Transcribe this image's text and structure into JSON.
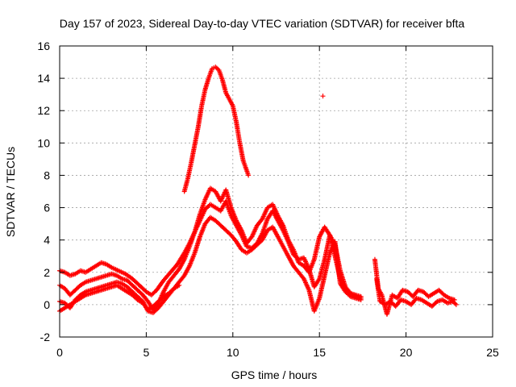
{
  "chart_data": {
    "type": "scatter",
    "title": "Day 157 of 2023, Sidereal Day-to-day VTEC variation (SDTVAR) for receiver bfta",
    "xlabel": "GPS time / hours",
    "ylabel": "SDTVAR / TECUs",
    "xlim": [
      0,
      25
    ],
    "ylim": [
      -2,
      16
    ],
    "xticks": [
      0,
      5,
      10,
      15,
      20,
      25
    ],
    "yticks": [
      -2,
      0,
      2,
      4,
      6,
      8,
      10,
      12,
      14,
      16
    ],
    "grid": true,
    "marker": "+",
    "color": "#ff0000",
    "series": [
      {
        "name": "track-a",
        "x": [
          0,
          0.3,
          0.6,
          0.9,
          1.2,
          1.5,
          1.8,
          2.1,
          2.4,
          2.7,
          3.0,
          3.4,
          3.8,
          4.2,
          4.6,
          5.0,
          5.3,
          5.6,
          6.0,
          6.4,
          6.8,
          7.2,
          7.5,
          7.8,
          8.1,
          8.4,
          8.7,
          9.0,
          9.3,
          9.6,
          9.9,
          10.2,
          10.5,
          10.8,
          11.1,
          11.4,
          11.7,
          12.0,
          12.3,
          12.6,
          12.9,
          13.2,
          13.5,
          13.8,
          14.1,
          14.4,
          14.7,
          15.0,
          15.3,
          15.6,
          15.9,
          16.2,
          16.5,
          16.8,
          17.1,
          17.4
        ],
        "y": [
          2.1,
          2.0,
          1.8,
          1.9,
          2.1,
          2.0,
          2.2,
          2.4,
          2.6,
          2.5,
          2.3,
          2.1,
          1.9,
          1.6,
          1.2,
          0.8,
          0.6,
          0.9,
          1.5,
          2.0,
          2.5,
          3.2,
          3.8,
          4.5,
          5.6,
          6.5,
          7.2,
          7.0,
          6.4,
          7.1,
          6.0,
          5.2,
          4.6,
          3.8,
          4.2,
          4.9,
          5.3,
          6.0,
          6.2,
          5.5,
          4.9,
          4.0,
          3.4,
          2.6,
          2.4,
          2.0,
          2.8,
          4.2,
          4.8,
          4.3,
          3.0,
          1.6,
          0.9,
          0.7,
          0.6,
          0.5
        ]
      },
      {
        "name": "track-b",
        "x": [
          0,
          0.3,
          0.6,
          0.9,
          1.2,
          1.5,
          1.8,
          2.1,
          2.4,
          2.7,
          3.0,
          3.3,
          3.6,
          3.9,
          4.2,
          4.5,
          4.8,
          5.1,
          5.4,
          5.7,
          6.0,
          6.3,
          6.6,
          6.9,
          7.2,
          7.5,
          7.8,
          8.1,
          8.4,
          8.7,
          9.0,
          9.3,
          9.6,
          9.9,
          10.2,
          10.5,
          10.8,
          11.1,
          11.4,
          11.7,
          12.0,
          12.3,
          12.6,
          12.9,
          13.2,
          13.5,
          13.8,
          14.1,
          14.4,
          14.7,
          15.0,
          15.3,
          15.6,
          15.9,
          16.2,
          16.5,
          16.8,
          17.1,
          17.4
        ],
        "y": [
          1.2,
          1.0,
          0.6,
          0.9,
          1.2,
          1.4,
          1.5,
          1.6,
          1.7,
          1.8,
          1.9,
          1.8,
          1.6,
          1.5,
          1.2,
          0.9,
          0.6,
          0.2,
          -0.3,
          0.1,
          0.8,
          1.4,
          1.8,
          2.2,
          2.8,
          3.6,
          4.5,
          5.2,
          5.9,
          6.2,
          6.0,
          5.8,
          6.4,
          5.5,
          4.9,
          4.3,
          3.6,
          3.5,
          3.8,
          4.4,
          5.3,
          5.8,
          5.2,
          4.6,
          3.9,
          3.1,
          2.8,
          2.9,
          2.2,
          1.1,
          1.6,
          2.8,
          4.3,
          3.7,
          2.1,
          1.1,
          0.7,
          0.5,
          0.4
        ]
      },
      {
        "name": "track-c",
        "x": [
          0,
          0.3,
          0.6,
          0.9,
          1.2,
          1.5,
          1.8,
          2.1,
          2.4,
          2.7,
          3.0,
          3.3,
          3.6,
          3.9,
          4.2,
          4.5,
          4.8,
          5.1,
          5.4,
          5.7,
          6.0,
          6.3,
          6.6,
          6.9,
          7.2,
          7.5,
          7.8,
          8.1,
          8.4,
          8.7,
          9.0,
          9.3,
          9.6,
          9.9,
          10.2,
          10.5,
          10.8,
          11.1,
          11.4,
          11.7,
          12.0,
          12.3,
          12.6,
          12.9,
          13.2,
          13.5,
          13.8,
          14.1,
          14.4,
          14.7,
          15.0,
          15.3,
          15.6,
          15.9,
          16.2,
          16.5,
          16.8,
          17.1,
          17.4
        ],
        "y": [
          0.2,
          0.1,
          -0.2,
          0.3,
          0.6,
          0.8,
          0.9,
          1.0,
          1.1,
          1.2,
          1.3,
          1.4,
          1.3,
          1.1,
          0.8,
          0.5,
          0.2,
          -0.4,
          -0.5,
          -0.2,
          0.2,
          0.6,
          1.0,
          1.4,
          1.8,
          2.4,
          3.2,
          4.2,
          5.0,
          5.4,
          5.2,
          4.9,
          4.6,
          4.3,
          3.9,
          3.4,
          3.2,
          3.4,
          3.7,
          4.0,
          4.6,
          4.8,
          4.2,
          3.6,
          3.0,
          2.4,
          2.0,
          1.6,
          0.9,
          -0.4,
          0.4,
          1.8,
          3.2,
          3.9,
          1.3,
          0.8,
          0.5,
          0.4,
          0.3
        ]
      },
      {
        "name": "track-d",
        "x": [
          0,
          0.3,
          0.6,
          0.9,
          1.2,
          1.5,
          1.8,
          2.1,
          2.4,
          2.7,
          3.0,
          3.3,
          3.6,
          3.9,
          4.2,
          4.5,
          4.8,
          5.1,
          5.4,
          5.7,
          6.0,
          6.3,
          6.6,
          6.9
        ],
        "y": [
          -0.4,
          -0.2,
          0.0,
          0.2,
          0.4,
          0.6,
          0.7,
          0.8,
          0.9,
          1.0,
          1.1,
          1.2,
          1.0,
          0.8,
          0.6,
          0.3,
          0.1,
          -0.3,
          -0.1,
          0.2,
          0.5,
          0.7,
          1.0,
          1.2
        ]
      },
      {
        "name": "late-day",
        "x": [
          18.2,
          18.4,
          18.6,
          18.9,
          19.2,
          19.5,
          19.8,
          20.1,
          20.4,
          20.7,
          21.0,
          21.3,
          21.6,
          21.9,
          22.2,
          22.5,
          22.8
        ],
        "y": [
          2.8,
          1.0,
          0.6,
          -0.6,
          0.6,
          0.4,
          0.9,
          0.8,
          0.5,
          0.9,
          0.8,
          0.5,
          0.7,
          0.9,
          0.6,
          0.4,
          0.3
        ]
      },
      {
        "name": "late-day-2",
        "x": [
          18.3,
          18.5,
          18.8,
          19.1,
          19.4,
          19.7,
          20.0,
          20.3,
          20.6,
          20.9,
          21.2,
          21.5,
          21.8,
          22.1,
          22.4,
          22.7,
          22.9
        ],
        "y": [
          1.6,
          0.2,
          0.0,
          0.2,
          -0.1,
          0.3,
          0.2,
          0.0,
          0.4,
          0.3,
          0.1,
          -0.1,
          0.2,
          0.3,
          0.1,
          0.2,
          0.0
        ]
      },
      {
        "name": "morning-peak",
        "x": [
          7.2,
          7.4,
          7.6,
          7.8,
          8.0,
          8.2,
          8.4,
          8.6,
          8.8,
          9.0,
          9.2,
          9.4,
          9.6,
          9.8,
          10.0,
          10.2,
          10.4,
          10.6,
          10.9
        ],
        "y": [
          7.0,
          7.8,
          8.8,
          9.9,
          11.0,
          12.3,
          13.3,
          14.0,
          14.6,
          14.7,
          14.5,
          13.9,
          13.1,
          12.7,
          12.3,
          11.3,
          10.0,
          8.9,
          8.0
        ]
      },
      {
        "name": "outlier",
        "x": [
          15.2
        ],
        "y": [
          12.9
        ]
      }
    ]
  }
}
